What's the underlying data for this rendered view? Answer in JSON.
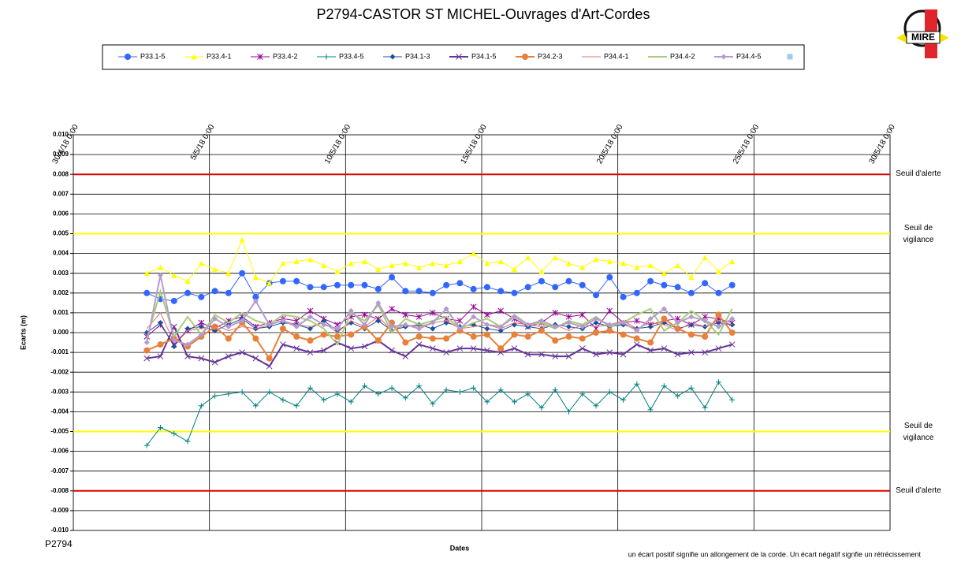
{
  "chart_data": {
    "type": "line",
    "title": "P2794-CASTOR  ST MICHEL-Ouvrages  d'Art-Cordes",
    "y_label": "Ecarts (m)",
    "x_label": "Dates",
    "footer_left": "P2794",
    "note": "un écart positif signifie un allongement de la corde.  Un écart négatif signfie  un rétrécissement",
    "logo": "MIRE",
    "grid": true,
    "xlim": [
      43220,
      43250
    ],
    "xticks": [
      {
        "value": 43220,
        "label": "30/4/18 0:00"
      },
      {
        "value": 43225,
        "label": "5/5/18 0:00"
      },
      {
        "value": 43230,
        "label": "10/5/18 0:00"
      },
      {
        "value": 43235,
        "label": "15/5/18 0:00"
      },
      {
        "value": 43240,
        "label": "20/5/18 0:00"
      },
      {
        "value": 43245,
        "label": "25/5/18 0:00"
      },
      {
        "value": 43250,
        "label": "30/5/18 0:00"
      }
    ],
    "ylim": [
      -0.01,
      0.01
    ],
    "yticks": [
      {
        "value": 0.01,
        "label": "0.010"
      },
      {
        "value": 0.009,
        "label": "0.009"
      },
      {
        "value": 0.008,
        "label": "0.008"
      },
      {
        "value": 0.007,
        "label": "0.007"
      },
      {
        "value": 0.006,
        "label": "0.006"
      },
      {
        "value": 0.005,
        "label": "0.005"
      },
      {
        "value": 0.004,
        "label": "0.004"
      },
      {
        "value": 0.003,
        "label": "0.003"
      },
      {
        "value": 0.002,
        "label": "0.002"
      },
      {
        "value": 0.001,
        "label": "0.001"
      },
      {
        "value": 0,
        "label": "0.000"
      },
      {
        "value": -0.001,
        "label": "-0.001"
      },
      {
        "value": -0.002,
        "label": "-0.002"
      },
      {
        "value": -0.003,
        "label": "-0.003"
      },
      {
        "value": -0.004,
        "label": "-0.004"
      },
      {
        "value": -0.005,
        "label": "-0.005"
      },
      {
        "value": -0.006,
        "label": "-0.006"
      },
      {
        "value": -0.007,
        "label": "-0.007"
      },
      {
        "value": -0.008,
        "label": "-0.008"
      },
      {
        "value": -0.009,
        "label": "-0.009"
      },
      {
        "value": -0.01,
        "label": "-0.010"
      }
    ],
    "thresholds": [
      {
        "value": 0.008,
        "label": "Seuil d'alerte",
        "color": "#e00000"
      },
      {
        "value": 0.005,
        "label": "Seuil de\nvigilance",
        "color": "#ffff00"
      },
      {
        "value": -0.005,
        "label": "Seuil de\nvigilance",
        "color": "#ffff00"
      },
      {
        "value": -0.008,
        "label": "Seuil d'alerte",
        "color": "#e00000"
      }
    ],
    "x": [
      43222.7,
      43223.2,
      43223.7,
      43224.2,
      43224.7,
      43225.2,
      43225.7,
      43226.2,
      43226.7,
      43227.2,
      43227.7,
      43228.2,
      43228.7,
      43229.2,
      43229.7,
      43230.2,
      43230.7,
      43231.2,
      43231.7,
      43232.2,
      43232.7,
      43233.2,
      43233.7,
      43234.2,
      43234.7,
      43235.2,
      43235.7,
      43236.2,
      43236.7,
      43237.2,
      43237.7,
      43238.2,
      43238.7,
      43239.2,
      43239.7,
      43240.2,
      43240.7,
      43241.2,
      43241.7,
      43242.2,
      43242.7,
      43243.2,
      43243.7,
      43244.2
    ],
    "series": [
      {
        "name": "P33.1-5",
        "color": "#3366ff",
        "marker": "circle",
        "line_width": 1,
        "values": [
          0.002,
          0.0017,
          0.0016,
          0.002,
          0.0018,
          0.0021,
          0.002,
          0.003,
          0.0018,
          0.0025,
          0.0026,
          0.0026,
          0.0023,
          0.0023,
          0.0024,
          0.0024,
          0.0024,
          0.0022,
          0.0028,
          0.0021,
          0.0021,
          0.002,
          0.0024,
          0.0025,
          0.0022,
          0.0023,
          0.0021,
          0.002,
          0.0023,
          0.0026,
          0.0023,
          0.0026,
          0.0024,
          0.0019,
          0.0028,
          0.0018,
          0.002,
          0.0026,
          0.0024,
          0.0023,
          0.002,
          0.0025,
          0.002,
          0.0024
        ]
      },
      {
        "name": "P33.4-1",
        "color": "#ffff00",
        "marker": "triangle",
        "line_width": 1,
        "values": [
          0.003,
          0.0033,
          0.0029,
          0.0026,
          0.0035,
          0.0032,
          0.003,
          0.0047,
          0.0028,
          0.0025,
          0.0035,
          0.0036,
          0.0037,
          0.0034,
          0.0031,
          0.0035,
          0.0036,
          0.0032,
          0.0034,
          0.0035,
          0.0033,
          0.0035,
          0.0034,
          0.0036,
          0.004,
          0.0035,
          0.0036,
          0.0032,
          0.0038,
          0.0031,
          0.0038,
          0.0035,
          0.0033,
          0.0037,
          0.0036,
          0.0035,
          0.0033,
          0.0034,
          0.003,
          0.0034,
          0.0028,
          0.0038,
          0.0031,
          0.0036
        ]
      },
      {
        "name": "P33.4-2",
        "color": "#990099",
        "marker": "star",
        "line_width": 1,
        "values": [
          -0.0002,
          0.0004,
          -0.0006,
          0.0001,
          0.0005,
          0.0002,
          0.0006,
          0.0008,
          0.0003,
          0.0005,
          0.0007,
          0.0006,
          0.0011,
          0.0007,
          0.0004,
          0.0008,
          0.0009,
          0.0007,
          0.0012,
          0.0009,
          0.0008,
          0.001,
          0.0007,
          0.0006,
          0.0013,
          0.0009,
          0.0011,
          0.0007,
          0.0003,
          0.0005,
          0.001,
          0.0008,
          0.0009,
          0.0002,
          0.0011,
          0.0005,
          0.0006,
          0.0004,
          0.0006,
          0.0007,
          0.0004,
          0.0008,
          0.0007,
          0.0005
        ]
      },
      {
        "name": "P33.4-5",
        "color": "#008080",
        "marker": "plus",
        "line_width": 1,
        "values": [
          -0.0057,
          -0.0048,
          -0.0051,
          -0.0055,
          -0.0037,
          -0.0032,
          -0.0031,
          -0.003,
          -0.0037,
          -0.003,
          -0.0034,
          -0.0037,
          -0.0028,
          -0.0034,
          -0.0031,
          -0.0035,
          -0.0027,
          -0.0031,
          -0.0028,
          -0.0033,
          -0.0027,
          -0.0036,
          -0.0029,
          -0.003,
          -0.0028,
          -0.0035,
          -0.0029,
          -0.0035,
          -0.0031,
          -0.0038,
          -0.0029,
          -0.004,
          -0.0031,
          -0.0037,
          -0.003,
          -0.0034,
          -0.0026,
          -0.0039,
          -0.0027,
          -0.0032,
          -0.0028,
          -0.0038,
          -0.0025,
          -0.0034
        ]
      },
      {
        "name": "P34.1-3",
        "color": "#1f4e9c",
        "marker": "diamond",
        "line_width": 1,
        "values": [
          0.0,
          0.0005,
          -0.0007,
          0.0002,
          0.0003,
          0.0001,
          0.0004,
          0.0007,
          0.0002,
          0.0003,
          0.0005,
          0.0004,
          0.0002,
          0.0006,
          0.0001,
          0.0005,
          0.0002,
          0.0006,
          0.0001,
          0.0003,
          0.0004,
          0.0002,
          0.0005,
          0.0003,
          0.0004,
          0.0002,
          0.0001,
          0.0004,
          0.0003,
          0.0002,
          0.0004,
          0.0003,
          0.0002,
          0.0005,
          0.0003,
          0.0004,
          0.0002,
          0.0003,
          0.0005,
          0.0002,
          0.0004,
          0.0003,
          0.0005,
          0.0004
        ]
      },
      {
        "name": "P34.1-5",
        "color": "#663399",
        "marker": "x",
        "line_width": 2,
        "values": [
          -0.0013,
          -0.0012,
          0.0003,
          -0.0012,
          -0.0013,
          -0.0015,
          -0.0012,
          -0.001,
          -0.0013,
          -0.0017,
          -0.0006,
          -0.0008,
          -0.001,
          -0.0009,
          -0.0005,
          -0.0008,
          -0.0007,
          -0.0004,
          -0.0009,
          -0.0012,
          -0.0006,
          -0.0008,
          -0.001,
          -0.0008,
          -0.0008,
          -0.0009,
          -0.001,
          -0.0008,
          -0.0011,
          -0.0011,
          -0.0012,
          -0.0012,
          -0.0008,
          -0.0011,
          -0.001,
          -0.0011,
          -0.0006,
          -0.0009,
          -0.0008,
          -0.0011,
          -0.001,
          -0.001,
          -0.0008,
          -0.0006
        ]
      },
      {
        "name": "P34.2-3",
        "color": "#e8803a",
        "marker": "circle",
        "line_width": 2,
        "values": [
          -0.0009,
          -0.0006,
          -0.0003,
          -0.0007,
          -0.0002,
          0.0003,
          -0.0003,
          0.0005,
          -0.0003,
          -0.0013,
          0.0002,
          -0.0002,
          -0.0004,
          -0.0001,
          -0.0002,
          -0.0001,
          0.0003,
          -0.0004,
          0.0005,
          -0.0005,
          -0.0002,
          -0.0003,
          -0.0003,
          0.0001,
          -0.0002,
          -0.0001,
          -0.0008,
          -0.0001,
          -0.0002,
          0.0001,
          -0.0004,
          -0.0002,
          -0.0003,
          0.0,
          0.0001,
          -0.0001,
          -0.0003,
          -0.0005,
          0.0007,
          0.0002,
          -0.0001,
          -0.0002,
          0.0009,
          0.0
        ]
      },
      {
        "name": "P34.4-1",
        "color": "#e07070",
        "marker": "none",
        "line_width": 1,
        "values": [
          0.0002,
          0.001,
          -0.0005,
          0.0001,
          0.0002,
          0.0004,
          0.0001,
          0.0003,
          0.0002,
          0.0004,
          0.0006,
          0.0004,
          0.0003,
          0.0005,
          0.0,
          0.0006,
          0.0003,
          0.0008,
          0.0001,
          0.0004,
          0.0003,
          0.0005,
          0.0006,
          0.0002,
          0.0003,
          0.0004,
          0.0002,
          0.0005,
          0.0004,
          0.0003,
          0.0004,
          0.0001,
          0.0004,
          0.0003,
          0.0004,
          0.0006,
          0.0002,
          0.0005,
          0.0004,
          0.0001,
          0.0005,
          0.0003,
          0.0006,
          0.0004
        ]
      },
      {
        "name": "P34.4-2",
        "color": "#a8cc78",
        "marker": "none",
        "line_width": 2,
        "values": [
          -0.0003,
          0.0021,
          -0.0002,
          0.0008,
          -0.0001,
          0.0009,
          0.0005,
          0.001,
          0.0006,
          0.0004,
          0.0009,
          0.0008,
          0.0006,
          0.0002,
          -0.0006,
          0.001,
          0.0006,
          0.0014,
          0.0,
          0.0007,
          0.0004,
          0.0006,
          0.0008,
          0.0002,
          0.0005,
          0.0007,
          0.0003,
          0.0009,
          0.0004,
          0.0005,
          0.0002,
          0.0006,
          0.0004,
          0.0008,
          0.0003,
          0.0005,
          0.0009,
          0.0012,
          0.0001,
          0.0005,
          0.0011,
          0.0006,
          -0.0001,
          0.0012
        ]
      },
      {
        "name": "P34.4-5",
        "color": "#b39ccc",
        "marker": "diamond",
        "line_width": 2,
        "values": [
          -0.0005,
          0.0029,
          -0.0004,
          -0.0006,
          -0.0001,
          0.0007,
          0.0003,
          0.0006,
          0.0016,
          0.0004,
          0.0006,
          0.0003,
          0.0008,
          0.0004,
          0.0002,
          0.0011,
          0.0004,
          0.0015,
          0.0003,
          0.0004,
          0.0002,
          0.0005,
          0.0012,
          0.0002,
          0.0008,
          0.0004,
          0.0003,
          0.0008,
          0.0004,
          0.0006,
          0.0003,
          0.0005,
          0.0003,
          0.0007,
          0.0004,
          0.0005,
          0.0001,
          0.0007,
          0.0012,
          0.0005,
          0.0008,
          0.0006,
          0.0003,
          0.0007
        ]
      },
      {
        "name": null,
        "color": "#99ccee",
        "marker": "square",
        "line_width": 1,
        "values": [
          null,
          null,
          null,
          null,
          null,
          null,
          null,
          null,
          null,
          null,
          null,
          null,
          null,
          null,
          null,
          null,
          null,
          null,
          null,
          null,
          null,
          null,
          null,
          null,
          null,
          null,
          null,
          null,
          null,
          null,
          null,
          null,
          null,
          null,
          null,
          null,
          null,
          null,
          null,
          null,
          null,
          null,
          null,
          null
        ]
      }
    ]
  }
}
